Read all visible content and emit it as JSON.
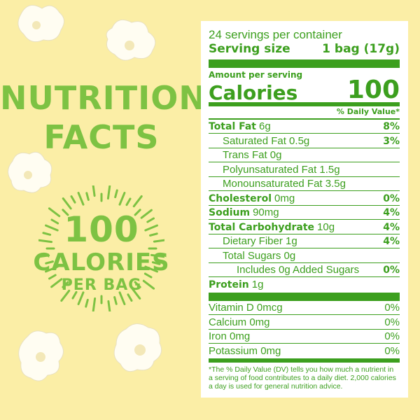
{
  "left": {
    "title_line1": "NUTRITION",
    "title_line2": "FACTS",
    "badge_number": "100",
    "badge_line1": "CALORIES",
    "badge_line2": "PER BAG"
  },
  "colors": {
    "background": "#fbeea6",
    "label_green": "#3c9f1e",
    "headline_green": "#7dc243"
  },
  "label": {
    "servings": "24 servings per container",
    "serving_size_label": "Serving size",
    "serving_size_value": "1 bag (17g)",
    "amount_per_serving": "Amount per serving",
    "calories_label": "Calories",
    "calories_value": "100",
    "dv_header": "% Daily Value*",
    "nutrients": [
      {
        "name": "Total Fat",
        "amount": "6g",
        "dv": "8%",
        "bold": true,
        "indent": 0
      },
      {
        "name": "Saturated Fat 0.5g",
        "amount": "",
        "dv": "3%",
        "bold": false,
        "indent": 1
      },
      {
        "name": "Trans Fat 0g",
        "amount": "",
        "dv": "",
        "bold": false,
        "indent": 1
      },
      {
        "name": "Polyunsaturated Fat 1.5g",
        "amount": "",
        "dv": "",
        "bold": false,
        "indent": 1
      },
      {
        "name": "Monounsaturated Fat 3.5g",
        "amount": "",
        "dv": "",
        "bold": false,
        "indent": 1
      },
      {
        "name": "Cholesterol",
        "amount": "0mg",
        "dv": "0%",
        "bold": true,
        "indent": 0
      },
      {
        "name": "Sodium",
        "amount": "90mg",
        "dv": "4%",
        "bold": true,
        "indent": 0
      },
      {
        "name": "Total Carbohydrate",
        "amount": "10g",
        "dv": "4%",
        "bold": true,
        "indent": 0
      },
      {
        "name": "Dietary Fiber 1g",
        "amount": "",
        "dv": "4%",
        "bold": false,
        "indent": 1
      },
      {
        "name": "Total Sugars 0g",
        "amount": "",
        "dv": "",
        "bold": false,
        "indent": 1
      },
      {
        "name": "Includes 0g Added Sugars",
        "amount": "",
        "dv": "0%",
        "bold": false,
        "indent": 2
      },
      {
        "name": "Protein",
        "amount": "1g",
        "dv": "",
        "bold": true,
        "indent": 0
      }
    ],
    "vitamins": [
      {
        "name": "Vitamin D 0mcg",
        "dv": "0%"
      },
      {
        "name": "Calcium 0mg",
        "dv": "0%"
      },
      {
        "name": "Iron 0mg",
        "dv": "0%"
      },
      {
        "name": "Potassium 0mg",
        "dv": "0%"
      }
    ],
    "footnote": "*The % Daily Value (DV) tells you how much a nutrient in a serving of food contributes to a daily diet. 2,000 calories a day is used for general nutrition advice."
  }
}
